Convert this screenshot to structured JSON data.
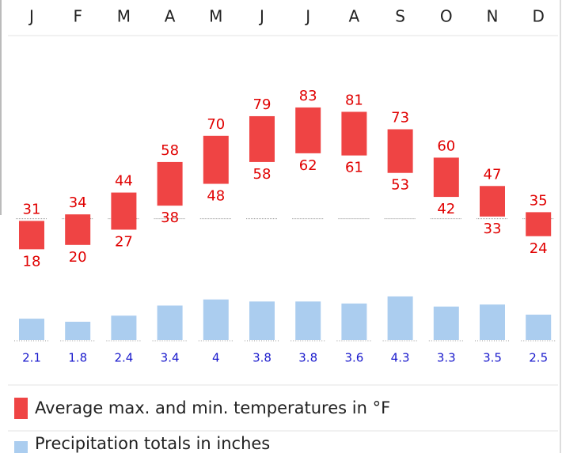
{
  "chart_data": {
    "type": "climate",
    "categories": [
      "J",
      "F",
      "M",
      "A",
      "M",
      "J",
      "J",
      "A",
      "S",
      "O",
      "N",
      "D"
    ],
    "temperature": {
      "name": "Average max. and min. temperatures in °F",
      "color": "#ef4444",
      "max": [
        31,
        34,
        44,
        58,
        70,
        79,
        83,
        81,
        73,
        60,
        47,
        35
      ],
      "min": [
        18,
        20,
        27,
        38,
        48,
        58,
        62,
        61,
        53,
        42,
        33,
        24
      ]
    },
    "precipitation": {
      "name": "Precipitation totals in inches",
      "color": "#abcdef",
      "values": [
        2.1,
        1.8,
        2.4,
        3.4,
        4,
        3.8,
        3.8,
        3.6,
        4.3,
        3.3,
        3.5,
        2.5
      ]
    },
    "reference_line": 32
  }
}
